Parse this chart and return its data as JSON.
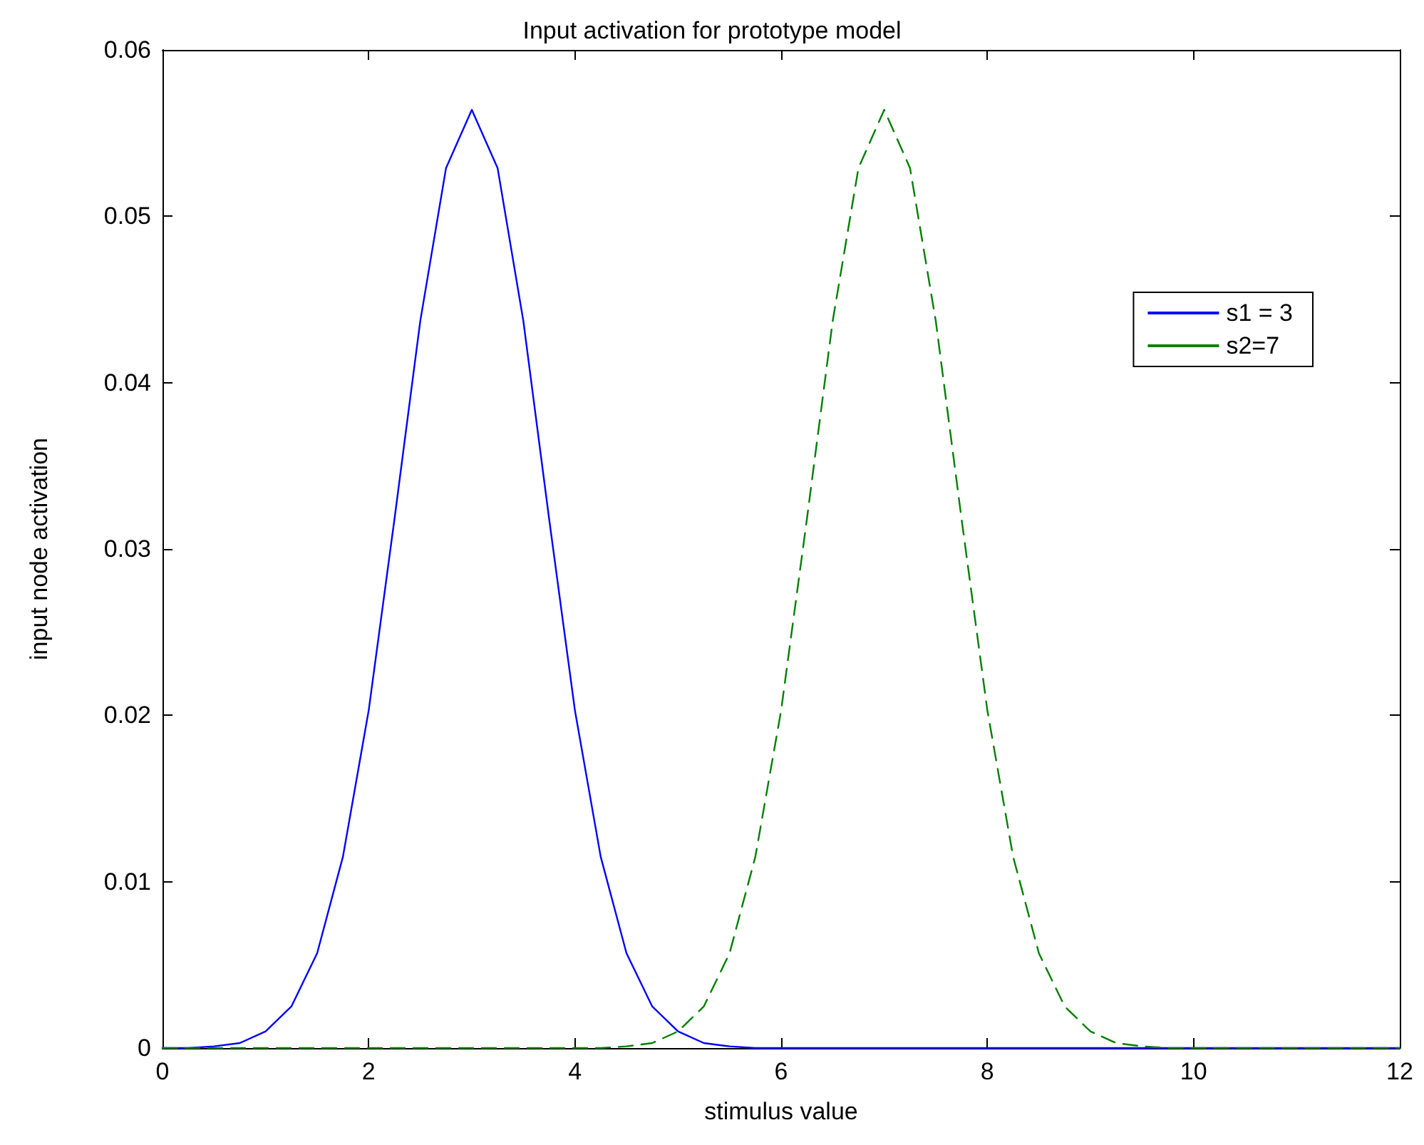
{
  "chart_data": {
    "type": "line",
    "title": "Input activation for prototype model",
    "xlabel": "stimulus value",
    "ylabel": "input node activation",
    "x": [
      0,
      0.25,
      0.5,
      0.75,
      1,
      1.25,
      1.5,
      1.75,
      2,
      2.25,
      2.5,
      2.75,
      3,
      3.25,
      3.5,
      3.75,
      4,
      4.25,
      4.5,
      4.75,
      5,
      5.25,
      5.5,
      5.75,
      6,
      6.25,
      6.5,
      6.75,
      7,
      7.25,
      7.5,
      7.75,
      8,
      8.25,
      8.5,
      8.75,
      9,
      9.25,
      9.5,
      9.75,
      10,
      10.25,
      10.5,
      10.75,
      11,
      11.25,
      11.5,
      11.75,
      12
    ],
    "series": [
      {
        "name": "s1 = 3",
        "color": "#0000ff",
        "line_style": "solid",
        "values": [
          0,
          0,
          0.0001,
          0.0003,
          0.001,
          0.0025,
          0.0057,
          0.0115,
          0.0203,
          0.0318,
          0.0437,
          0.0529,
          0.0564,
          0.0529,
          0.0437,
          0.0318,
          0.0203,
          0.0115,
          0.0057,
          0.0025,
          0.001,
          0.0003,
          0.0001,
          0,
          0,
          0,
          0,
          0,
          0,
          0,
          0,
          0,
          0,
          0,
          0,
          0,
          0,
          0,
          0,
          0,
          0,
          0,
          0,
          0,
          0,
          0,
          0,
          0,
          0
        ]
      },
      {
        "name": "s2=7",
        "color": "#008000",
        "line_style": "dashed",
        "values": [
          0,
          0,
          0,
          0,
          0,
          0,
          0,
          0,
          0,
          0,
          0,
          0,
          0,
          0,
          0,
          0,
          0,
          0,
          0.0001,
          0.0003,
          0.001,
          0.0025,
          0.0057,
          0.0115,
          0.0203,
          0.0318,
          0.0437,
          0.0529,
          0.0564,
          0.0529,
          0.0437,
          0.0318,
          0.0203,
          0.0115,
          0.0057,
          0.0025,
          0.001,
          0.0003,
          0.0001,
          0,
          0,
          0,
          0,
          0,
          0,
          0,
          0,
          0,
          0
        ]
      }
    ],
    "xlim": [
      0,
      12
    ],
    "xticks": [
      0,
      2,
      4,
      6,
      8,
      10,
      12
    ],
    "ylim": [
      0,
      0.06
    ],
    "yticks": [
      0,
      0.01,
      0.02,
      0.03,
      0.04,
      0.05,
      0.06
    ],
    "grid": false,
    "legend": "top right",
    "marker": "none"
  }
}
